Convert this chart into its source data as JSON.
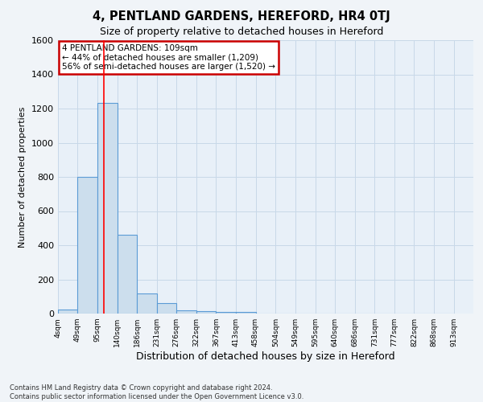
{
  "title": "4, PENTLAND GARDENS, HEREFORD, HR4 0TJ",
  "subtitle": "Size of property relative to detached houses in Hereford",
  "xlabel": "Distribution of detached houses by size in Hereford",
  "ylabel": "Number of detached properties",
  "footnote": "Contains HM Land Registry data © Crown copyright and database right 2024.\nContains public sector information licensed under the Open Government Licence v3.0.",
  "bin_labels": [
    "4sqm",
    "49sqm",
    "95sqm",
    "140sqm",
    "186sqm",
    "231sqm",
    "276sqm",
    "322sqm",
    "367sqm",
    "413sqm",
    "458sqm",
    "504sqm",
    "549sqm",
    "595sqm",
    "640sqm",
    "686sqm",
    "731sqm",
    "777sqm",
    "822sqm",
    "868sqm",
    "913sqm"
  ],
  "bin_edges": [
    4,
    49,
    95,
    140,
    186,
    231,
    276,
    322,
    367,
    413,
    458,
    504,
    549,
    595,
    640,
    686,
    731,
    777,
    822,
    868,
    913
  ],
  "bar_values": [
    25,
    800,
    1235,
    460,
    120,
    60,
    20,
    15,
    10,
    10,
    0,
    0,
    0,
    0,
    0,
    0,
    0,
    0,
    0,
    0
  ],
  "bar_color": "#ccdeed",
  "bar_edge_color": "#5b9bd5",
  "grid_color": "#c8d8e8",
  "plot_bg_color": "#e8f0f8",
  "fig_bg_color": "#f0f4f8",
  "red_line_x": 109,
  "ylim": [
    0,
    1600
  ],
  "yticks": [
    0,
    200,
    400,
    600,
    800,
    1000,
    1200,
    1400,
    1600
  ],
  "annotation_text": "4 PENTLAND GARDENS: 109sqm\n← 44% of detached houses are smaller (1,209)\n56% of semi-detached houses are larger (1,520) →",
  "annotation_box_color": "#ffffff",
  "annotation_box_edge_color": "#cc0000"
}
